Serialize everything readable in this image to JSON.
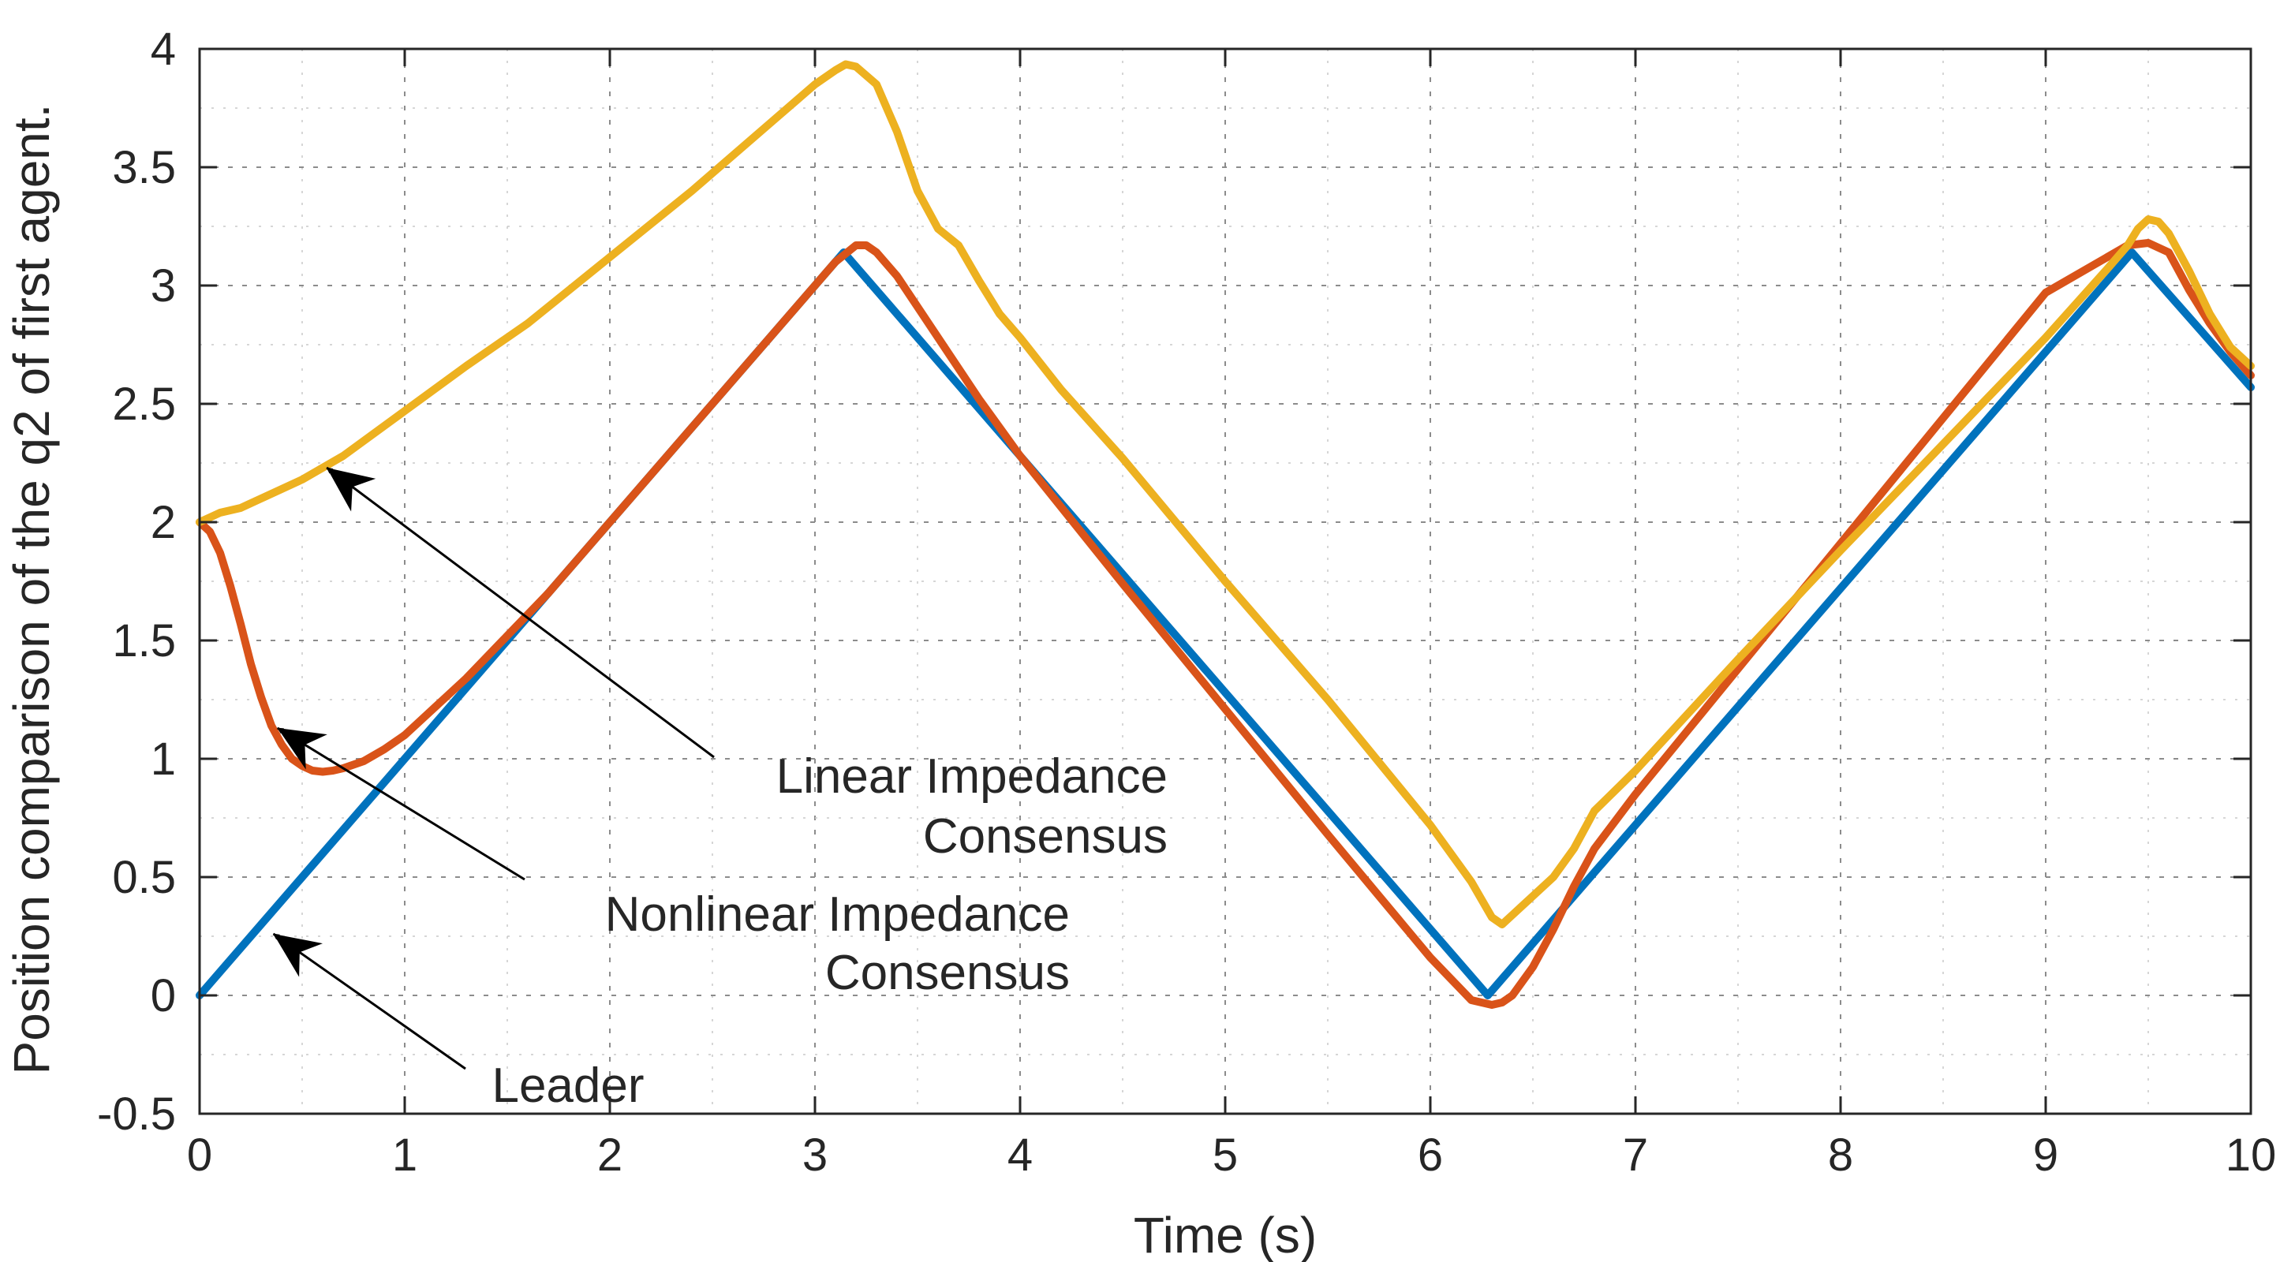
{
  "chart_data": {
    "type": "line",
    "title": "",
    "xlabel": "Time (s)",
    "ylabel": "Position comparison of the q2 of first agent.",
    "xlim": [
      0,
      10
    ],
    "ylim": [
      -0.5,
      4
    ],
    "xticks": [
      "0",
      "1",
      "2",
      "3",
      "4",
      "5",
      "6",
      "7",
      "8",
      "9",
      "10"
    ],
    "yticks": [
      "-0.5",
      "0",
      "0.5",
      "1",
      "1.5",
      "2",
      "2.5",
      "3",
      "3.5",
      "4"
    ],
    "grid": "on (major and minor, dotted)",
    "legend": "none",
    "series": [
      {
        "name": "Leader",
        "color": "#0072BD",
        "x": [
          0,
          3.14,
          6.28,
          9.42,
          10
        ],
        "y": [
          0,
          3.14,
          0,
          3.14,
          2.57
        ]
      },
      {
        "name": "Nonlinear Impedance Consensus",
        "color": "#D95319",
        "x": [
          0,
          0.05,
          0.1,
          0.15,
          0.2,
          0.25,
          0.3,
          0.35,
          0.4,
          0.45,
          0.5,
          0.55,
          0.6,
          0.65,
          0.7,
          0.8,
          0.9,
          1.0,
          1.1,
          1.2,
          1.3,
          1.4,
          1.5,
          1.6,
          1.7,
          1.8,
          1.9,
          2.0,
          2.2,
          2.4,
          2.6,
          2.8,
          3.0,
          3.1,
          3.2,
          3.25,
          3.3,
          3.4,
          3.5,
          3.6,
          3.8,
          4.0,
          4.5,
          5.0,
          5.5,
          6.0,
          6.2,
          6.3,
          6.35,
          6.4,
          6.5,
          6.6,
          6.7,
          6.8,
          7.0,
          7.5,
          8.0,
          8.5,
          9.0,
          9.3,
          9.4,
          9.5,
          9.6,
          9.7,
          9.8,
          9.9,
          10.0
        ],
        "y": [
          2.0,
          1.96,
          1.87,
          1.73,
          1.57,
          1.4,
          1.26,
          1.14,
          1.06,
          1.0,
          0.97,
          0.95,
          0.945,
          0.95,
          0.96,
          0.99,
          1.04,
          1.1,
          1.18,
          1.26,
          1.34,
          1.43,
          1.52,
          1.61,
          1.7,
          1.8,
          1.9,
          2.0,
          2.2,
          2.4,
          2.6,
          2.8,
          3.0,
          3.1,
          3.17,
          3.17,
          3.14,
          3.04,
          2.91,
          2.78,
          2.52,
          2.28,
          1.74,
          1.21,
          0.68,
          0.16,
          -0.02,
          -0.04,
          -0.03,
          0.0,
          0.12,
          0.28,
          0.46,
          0.62,
          0.85,
          1.38,
          1.91,
          2.44,
          2.97,
          3.12,
          3.17,
          3.18,
          3.14,
          2.98,
          2.84,
          2.72,
          2.62
        ]
      },
      {
        "name": "Linear Impedance Consensus",
        "color": "#EDB120",
        "x": [
          0,
          0.05,
          0.1,
          0.2,
          0.3,
          0.5,
          0.7,
          1.0,
          1.3,
          1.6,
          2.0,
          2.4,
          2.8,
          3.0,
          3.1,
          3.15,
          3.2,
          3.3,
          3.4,
          3.5,
          3.6,
          3.7,
          3.8,
          3.9,
          4.0,
          4.2,
          4.5,
          5.0,
          5.5,
          6.0,
          6.2,
          6.3,
          6.35,
          6.4,
          6.5,
          6.6,
          6.7,
          6.8,
          7.0,
          7.5,
          8.0,
          8.5,
          9.0,
          9.3,
          9.4,
          9.45,
          9.5,
          9.55,
          9.6,
          9.7,
          9.8,
          9.9,
          10.0
        ],
        "y": [
          2.0,
          2.02,
          2.04,
          2.06,
          2.1,
          2.18,
          2.28,
          2.47,
          2.66,
          2.84,
          3.12,
          3.4,
          3.7,
          3.85,
          3.91,
          3.935,
          3.925,
          3.85,
          3.65,
          3.4,
          3.24,
          3.17,
          3.02,
          2.88,
          2.78,
          2.56,
          2.27,
          1.75,
          1.25,
          0.72,
          0.48,
          0.33,
          0.3,
          0.34,
          0.42,
          0.5,
          0.62,
          0.78,
          0.95,
          1.42,
          1.88,
          2.33,
          2.78,
          3.07,
          3.17,
          3.24,
          3.28,
          3.27,
          3.22,
          3.06,
          2.88,
          2.74,
          2.66
        ]
      }
    ],
    "annotations": [
      {
        "id": "linear",
        "lines": [
          "Linear Impedance",
          "Consensus"
        ],
        "arrow_to": [
          0.62,
          2.23
        ]
      },
      {
        "id": "nonlinear",
        "lines": [
          "Nonlinear Impedance",
          "Consensus"
        ],
        "arrow_to": [
          0.38,
          1.13
        ]
      },
      {
        "id": "leader",
        "lines": [
          "Leader"
        ],
        "arrow_to": [
          0.36,
          0.26
        ]
      }
    ]
  }
}
